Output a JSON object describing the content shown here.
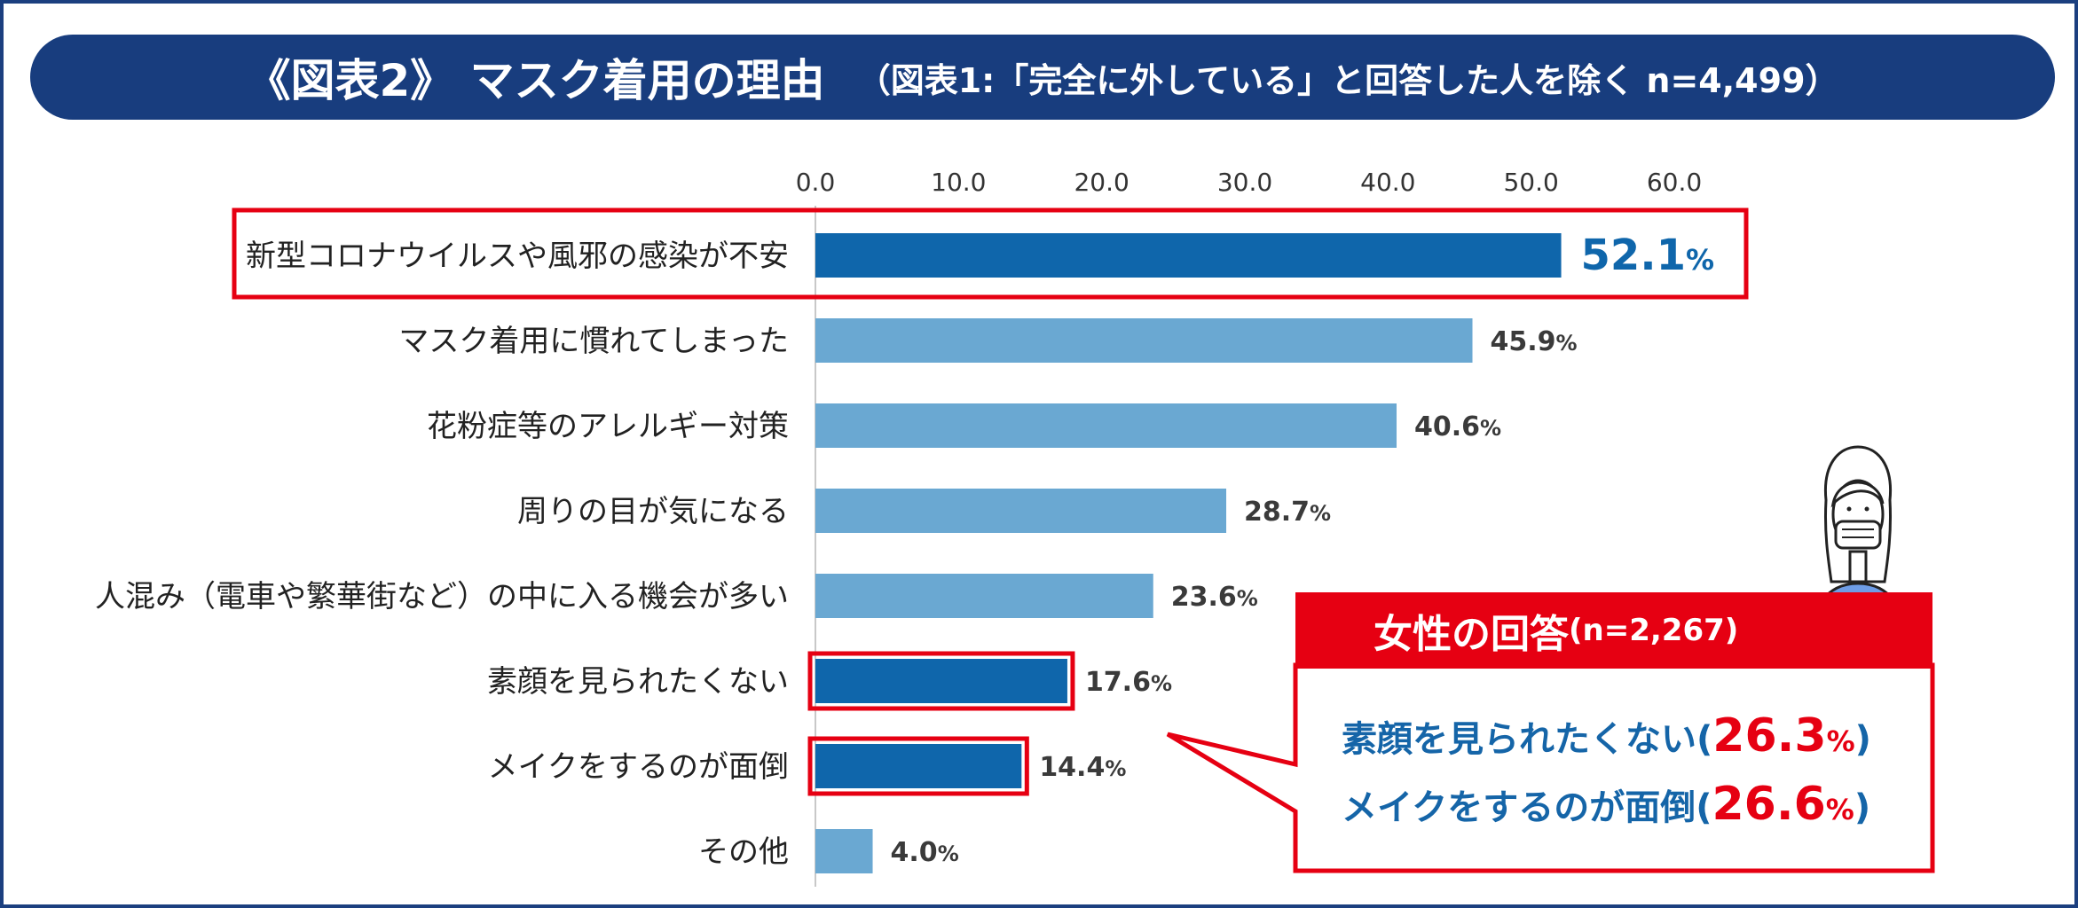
{
  "header": {
    "title": "《図表2》 マスク着用の理由",
    "subtitle": "（図表1:「完全に外している」と回答した人を除く n=4,499）"
  },
  "chart_data": {
    "type": "bar",
    "orientation": "horizontal",
    "unit": "%",
    "xlim": [
      0,
      60
    ],
    "x_ticks": [
      "0.0",
      "10.0",
      "20.0",
      "30.0",
      "40.0",
      "50.0",
      "60.0"
    ],
    "categories": [
      "新型コロナウイルスや風邪の感染が不安",
      "マスク着用に慣れてしまった",
      "花粉症等のアレルギー対策",
      "周りの目が気になる",
      "人混み（電車や繁華街など）の中に入る機会が多い",
      "素顔を見られたくない",
      "メイクをするのが面倒",
      "その他"
    ],
    "values": [
      52.1,
      45.9,
      40.6,
      28.7,
      23.6,
      17.6,
      14.4,
      4.0
    ],
    "value_labels": [
      "52.1",
      "45.9",
      "40.6",
      "28.7",
      "23.6",
      "17.6",
      "14.4",
      "4.0"
    ],
    "highlight": [
      true,
      false,
      false,
      false,
      false,
      true,
      true,
      false
    ],
    "colors": {
      "highlight": "#0f66ab",
      "normal": "#6aa8d2",
      "frame": "#e60012",
      "axis_text": "#333333",
      "label_text": "#222222"
    }
  },
  "callout": {
    "title": "女性の回答",
    "n": "(n=2,267)",
    "items": [
      {
        "label": "素顔を見られたくない",
        "open": "(",
        "value": "26.3",
        "unit": "%",
        "close": ")"
      },
      {
        "label": "メイクをするのが面倒",
        "open": "(",
        "value": "26.6",
        "unit": "%",
        "close": ")"
      }
    ]
  },
  "illustration": {
    "icon": "woman-wearing-mask-icon"
  }
}
